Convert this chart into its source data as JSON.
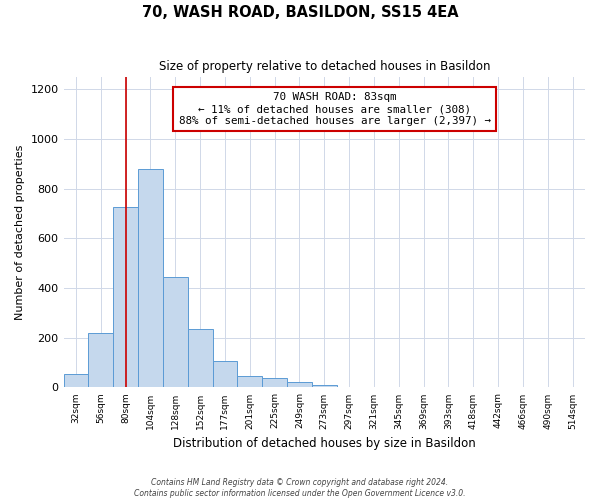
{
  "title": "70, WASH ROAD, BASILDON, SS15 4EA",
  "subtitle": "Size of property relative to detached houses in Basildon",
  "xlabel": "Distribution of detached houses by size in Basildon",
  "ylabel": "Number of detached properties",
  "footer_line1": "Contains HM Land Registry data © Crown copyright and database right 2024.",
  "footer_line2": "Contains public sector information licensed under the Open Government Licence v3.0.",
  "bin_labels": [
    "32sqm",
    "56sqm",
    "80sqm",
    "104sqm",
    "128sqm",
    "152sqm",
    "177sqm",
    "201sqm",
    "225sqm",
    "249sqm",
    "273sqm",
    "297sqm",
    "321sqm",
    "345sqm",
    "369sqm",
    "393sqm",
    "418sqm",
    "442sqm",
    "466sqm",
    "490sqm",
    "514sqm"
  ],
  "bar_values": [
    55,
    220,
    728,
    878,
    443,
    235,
    105,
    48,
    38,
    20,
    10,
    2,
    0,
    0,
    0,
    0,
    0,
    0,
    0,
    0,
    0
  ],
  "bar_color": "#c5d8ed",
  "bar_edge_color": "#5b9bd5",
  "annotation_line1": "70 WASH ROAD: 83sqm",
  "annotation_line2": "← 11% of detached houses are smaller (308)",
  "annotation_line3": "88% of semi-detached houses are larger (2,397) →",
  "annotation_box_color": "#ffffff",
  "annotation_box_edge_color": "#cc0000",
  "vline_x_index": 2,
  "vline_color": "#cc0000",
  "ylim": [
    0,
    1250
  ],
  "yticks": [
    0,
    200,
    400,
    600,
    800,
    1000,
    1200
  ],
  "grid_color": "#d0d8e8",
  "background_color": "#ffffff",
  "num_bins": 21
}
